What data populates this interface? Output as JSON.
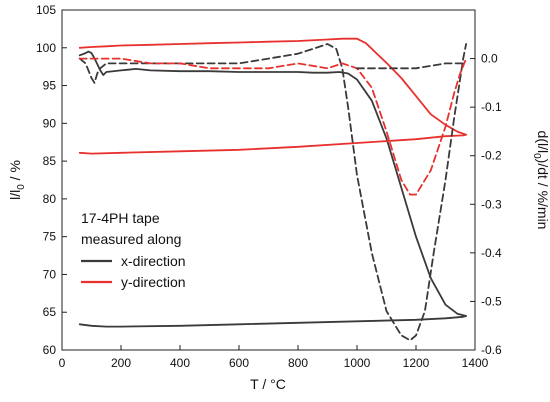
{
  "chart_data": {
    "type": "line",
    "x_axis": {
      "label_main": "T / °C",
      "ticks": [
        0,
        200,
        400,
        600,
        800,
        1000,
        1200,
        1400
      ],
      "range": [
        0,
        1400
      ]
    },
    "left_axis": {
      "label_base": "l/l",
      "label_sub": "0",
      "label_suffix": " / %",
      "ticks": [
        60,
        65,
        70,
        75,
        80,
        85,
        90,
        95,
        100,
        105
      ],
      "range": [
        60,
        105
      ]
    },
    "right_axis": {
      "label_prefix": "d(l/l",
      "label_sub": "0",
      "label_suffix": ")/dt / %/min",
      "ticks": [
        0.0,
        -0.1,
        -0.2,
        -0.3,
        -0.4,
        -0.5,
        -0.6
      ],
      "tick_labels": [
        "0.0",
        "-0.1",
        "-0.2",
        "-0.3",
        "-0.4",
        "-0.5",
        "-0.6"
      ],
      "range": [
        -0.6,
        0.1
      ]
    },
    "legend": {
      "title_line1": "17-4PH tape",
      "title_line2": "measured along",
      "items": [
        {
          "label": "x-direction",
          "color": "#3a3a3a"
        },
        {
          "label": "y-direction",
          "color": "#e8312f"
        }
      ],
      "placement": "lower-left"
    },
    "grid": false,
    "series": [
      {
        "name": "x-direction",
        "quantity": "l/l0",
        "axis": "left",
        "color": "#3a3a3a",
        "style": "solid",
        "x": [
          60,
          80,
          90,
          100,
          110,
          120,
          130,
          140,
          150,
          200,
          250,
          300,
          400,
          500,
          600,
          700,
          800,
          850,
          900,
          940,
          970,
          1000,
          1050,
          1100,
          1150,
          1200,
          1250,
          1300,
          1340,
          1360,
          1370,
          1360,
          1300,
          1200,
          1000,
          800,
          600,
          400,
          200,
          150,
          100,
          60
        ],
        "y": [
          99.0,
          99.3,
          99.5,
          99.3,
          98.6,
          97.8,
          97.0,
          96.4,
          96.8,
          97.0,
          97.2,
          97.0,
          96.9,
          96.9,
          96.8,
          96.8,
          96.8,
          96.7,
          96.7,
          96.8,
          96.6,
          95.8,
          93.0,
          88.0,
          81.5,
          75.0,
          69.5,
          66.0,
          64.8,
          64.6,
          64.5,
          64.4,
          64.2,
          64.0,
          63.8,
          63.6,
          63.4,
          63.2,
          63.1,
          63.1,
          63.2,
          63.4
        ]
      },
      {
        "name": "y-direction",
        "quantity": "l/l0",
        "axis": "left",
        "color": "#e8312f",
        "style": "solid",
        "x": [
          60,
          100,
          150,
          200,
          300,
          400,
          500,
          600,
          700,
          800,
          900,
          950,
          1000,
          1030,
          1060,
          1100,
          1150,
          1200,
          1250,
          1300,
          1340,
          1370,
          1360,
          1300,
          1200,
          1000,
          800,
          600,
          400,
          200,
          100,
          60
        ],
        "y": [
          100.0,
          100.1,
          100.2,
          100.3,
          100.4,
          100.5,
          100.6,
          100.7,
          100.8,
          100.9,
          101.1,
          101.2,
          101.2,
          100.6,
          99.5,
          98.0,
          96.0,
          93.6,
          91.2,
          89.8,
          88.9,
          88.5,
          88.4,
          88.3,
          87.9,
          87.4,
          86.9,
          86.5,
          86.3,
          86.1,
          86.0,
          86.1
        ]
      },
      {
        "name": "x-direction",
        "quantity": "d(l/l0)/dt",
        "axis": "right",
        "color": "#3a3a3a",
        "style": "dashed",
        "x": [
          60,
          80,
          100,
          110,
          120,
          130,
          150,
          200,
          300,
          400,
          500,
          600,
          700,
          800,
          850,
          900,
          930,
          950,
          970,
          1000,
          1050,
          1100,
          1150,
          1180,
          1200,
          1230,
          1260,
          1300,
          1330,
          1350,
          1360,
          1370
        ],
        "y": [
          0.0,
          -0.01,
          -0.04,
          -0.05,
          -0.03,
          -0.02,
          -0.01,
          -0.01,
          -0.01,
          -0.01,
          -0.01,
          -0.01,
          0.0,
          0.01,
          0.02,
          0.03,
          0.02,
          -0.02,
          -0.1,
          -0.24,
          -0.4,
          -0.52,
          -0.57,
          -0.58,
          -0.57,
          -0.52,
          -0.4,
          -0.25,
          -0.12,
          -0.04,
          0.0,
          0.03
        ]
      },
      {
        "name": "y-direction",
        "quantity": "d(l/l0)/dt",
        "axis": "right",
        "color": "#e8312f",
        "style": "dashed",
        "x": [
          60,
          100,
          150,
          200,
          300,
          400,
          500,
          600,
          700,
          800,
          900,
          950,
          1000,
          1050,
          1100,
          1150,
          1180,
          1200,
          1250,
          1300,
          1330,
          1350,
          1370
        ],
        "y": [
          0.0,
          0.0,
          0.0,
          0.0,
          -0.01,
          -0.01,
          -0.02,
          -0.02,
          -0.02,
          -0.01,
          -0.02,
          -0.01,
          -0.02,
          -0.06,
          -0.15,
          -0.25,
          -0.28,
          -0.28,
          -0.23,
          -0.14,
          -0.07,
          -0.03,
          0.0
        ]
      },
      {
        "name": "x-direction",
        "quantity": "d(l/l0)/dt",
        "axis": "right",
        "color": "#3a3a3a",
        "style": "dashed-cooling",
        "x": [
          1000,
          1100,
          1200,
          1300,
          1370
        ],
        "y": [
          -0.02,
          -0.02,
          -0.02,
          -0.01,
          -0.01
        ]
      }
    ]
  }
}
